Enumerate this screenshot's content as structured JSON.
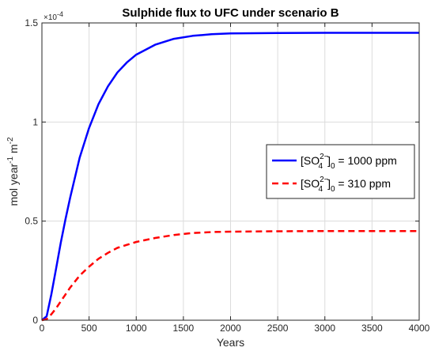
{
  "chart_data": {
    "type": "line",
    "title": "Sulphide flux to UFC under scenario B",
    "xlabel": "Years",
    "ylabel_parts": [
      "mol year",
      "-1",
      " m",
      "-2"
    ],
    "y_exponent_label": [
      "×10",
      "-4"
    ],
    "xlim": [
      0,
      4000
    ],
    "ylim": [
      0,
      1.5
    ],
    "y_scale_factor": 0.0001,
    "xticks": [
      0,
      500,
      1000,
      1500,
      2000,
      2500,
      3000,
      3500,
      4000
    ],
    "yticks": [
      0,
      0.5,
      1,
      1.5
    ],
    "ytick_labels": [
      "0",
      "0.5",
      "1",
      "1.5"
    ],
    "grid": true,
    "legend_position": "right",
    "series": [
      {
        "name": "[SO4^2-]_0 = 1000 ppm",
        "legend": {
          "pre": "[SO",
          "sup": "2−",
          "sub": "4",
          "close": "]",
          "sub2": "0",
          "post": " = 1000 ppm"
        },
        "color": "#0000ff",
        "style": "solid",
        "x": [
          0,
          50,
          100,
          150,
          200,
          250,
          300,
          400,
          500,
          600,
          700,
          800,
          900,
          1000,
          1200,
          1400,
          1600,
          1800,
          2000,
          2500,
          3000,
          3500,
          4000
        ],
        "y": [
          0,
          0.02,
          0.13,
          0.26,
          0.39,
          0.51,
          0.62,
          0.82,
          0.97,
          1.09,
          1.18,
          1.25,
          1.3,
          1.34,
          1.39,
          1.42,
          1.435,
          1.443,
          1.447,
          1.449,
          1.45,
          1.45,
          1.45
        ]
      },
      {
        "name": "[SO4^2-]_0 = 310 ppm",
        "legend": {
          "pre": "[SO",
          "sup": "2−",
          "sub": "4",
          "close": "]",
          "sub2": "0",
          "post": " = 310 ppm"
        },
        "color": "#ff0000",
        "style": "dashed",
        "x": [
          0,
          50,
          100,
          150,
          200,
          250,
          300,
          400,
          500,
          600,
          700,
          800,
          900,
          1000,
          1200,
          1400,
          1600,
          1800,
          2000,
          2500,
          3000,
          3500,
          4000
        ],
        "y": [
          0,
          0.005,
          0.03,
          0.06,
          0.095,
          0.13,
          0.165,
          0.225,
          0.27,
          0.31,
          0.34,
          0.365,
          0.38,
          0.395,
          0.415,
          0.43,
          0.44,
          0.445,
          0.447,
          0.449,
          0.45,
          0.45,
          0.45
        ]
      }
    ]
  }
}
